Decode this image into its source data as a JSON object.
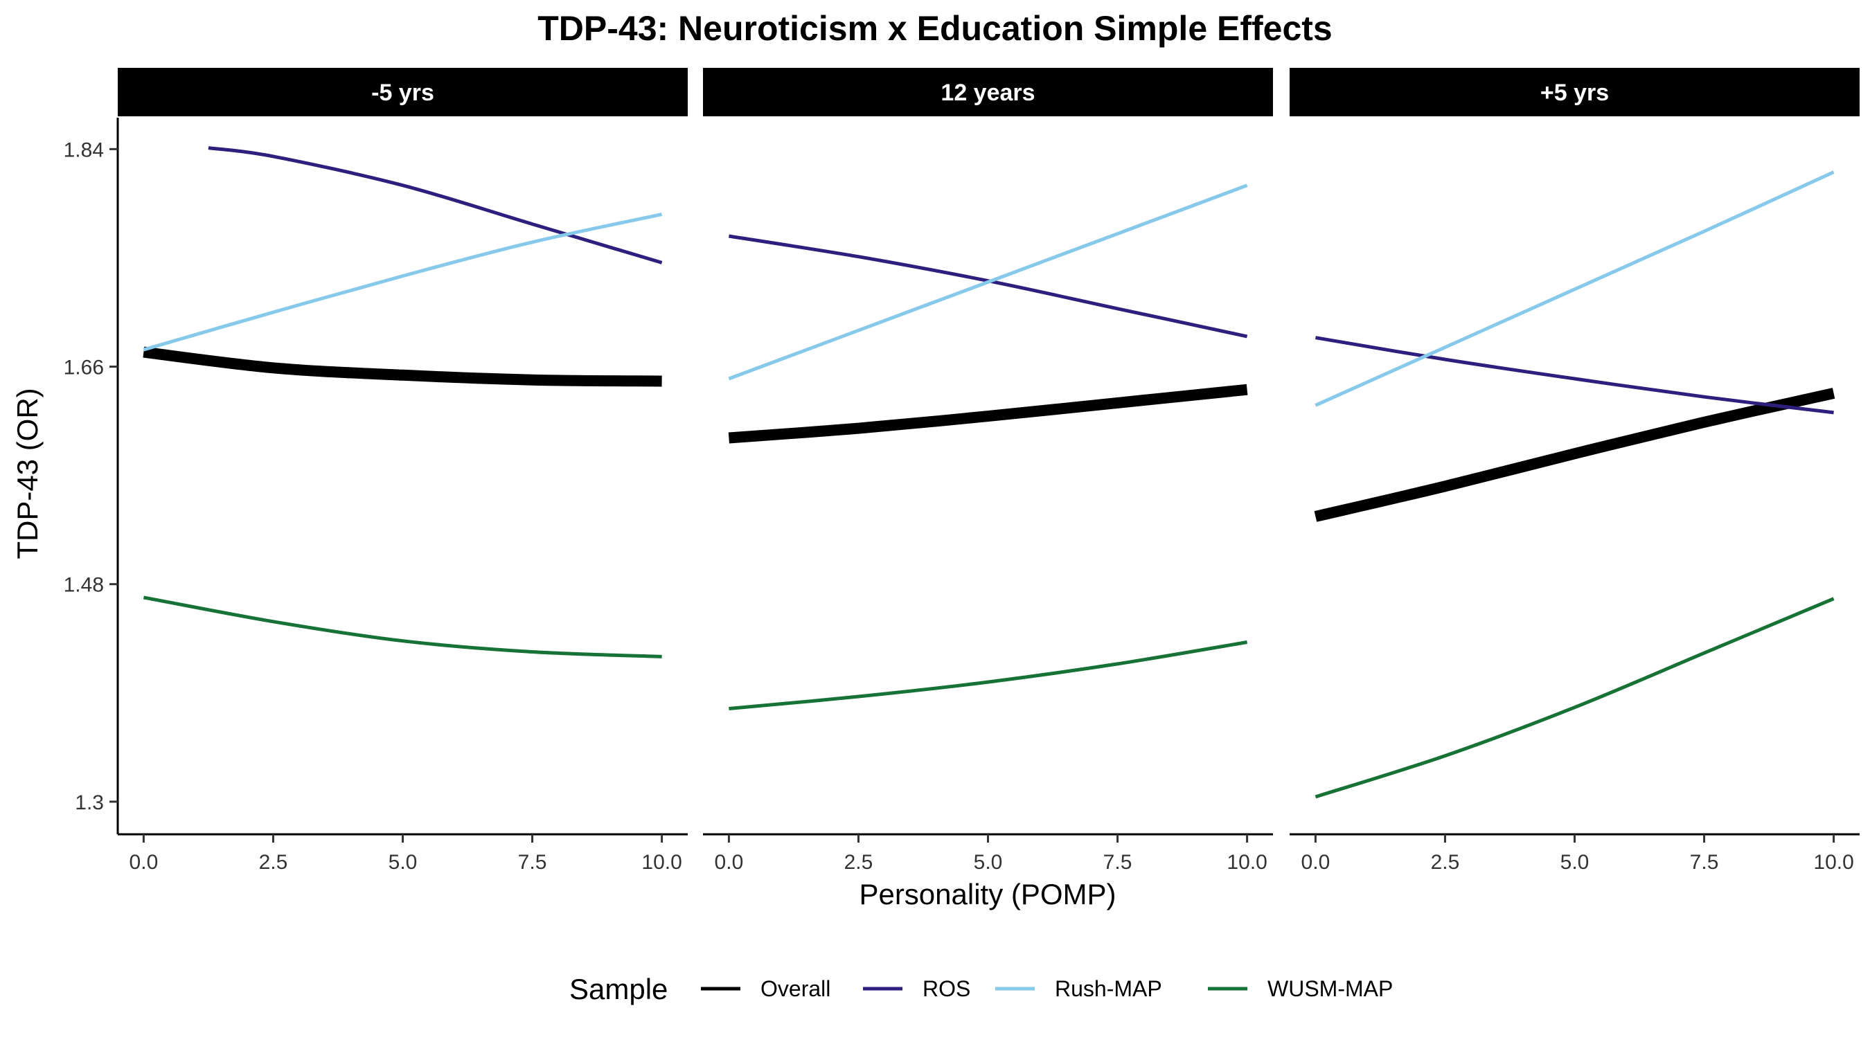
{
  "chart_data": {
    "type": "line",
    "title": "TDP-43: Neuroticism x Education Simple Effects",
    "xlabel": "Personality (POMP)",
    "ylabel": "TDP-43 (OR)",
    "xlim": [
      -0.5,
      10.5
    ],
    "ylim": [
      1.273,
      1.866
    ],
    "x_ticks": [
      0,
      2.5,
      5,
      7.5,
      10
    ],
    "x_tick_labels": [
      "0.0",
      "2.5",
      "5.0",
      "7.5",
      "10.0"
    ],
    "y_ticks": [
      1.3,
      1.48,
      1.66,
      1.84
    ],
    "y_tick_labels": [
      "1.3",
      "1.48",
      "1.66",
      "1.84"
    ],
    "grid": false,
    "legend": {
      "title": "Sample",
      "position": "bottom",
      "entries": [
        "Overall",
        "ROS",
        "Rush-MAP",
        "WUSM-MAP"
      ]
    },
    "series_colors": {
      "Overall": "#000000",
      "ROS": "#2e1f7f",
      "Rush-MAP": "#87c9ea",
      "WUSM-MAP": "#177235"
    },
    "panels": [
      {
        "label": "-5 yrs",
        "series": [
          {
            "name": "Overall",
            "x": [
              0,
              2.5,
              5,
              7.5,
              10
            ],
            "y": [
              1.672,
              1.659,
              1.653,
              1.649,
              1.648
            ]
          },
          {
            "name": "ROS",
            "x": [
              1.25,
              2.5,
              5,
              7.5,
              10
            ],
            "y": [
              1.841,
              1.834,
              1.81,
              1.778,
              1.746
            ]
          },
          {
            "name": "Rush-MAP",
            "x": [
              0,
              2.5,
              5,
              7.5,
              10
            ],
            "y": [
              1.674,
              1.705,
              1.735,
              1.763,
              1.786
            ]
          },
          {
            "name": "WUSM-MAP",
            "x": [
              0,
              2.5,
              5,
              7.5,
              10
            ],
            "y": [
              1.469,
              1.449,
              1.433,
              1.424,
              1.42
            ]
          }
        ]
      },
      {
        "label": "12 years",
        "series": [
          {
            "name": "Overall",
            "x": [
              0,
              2.5,
              5,
              7.5,
              10
            ],
            "y": [
              1.601,
              1.609,
              1.619,
              1.63,
              1.641
            ]
          },
          {
            "name": "ROS",
            "x": [
              0,
              2.5,
              5,
              7.5,
              10
            ],
            "y": [
              1.768,
              1.751,
              1.731,
              1.708,
              1.685
            ]
          },
          {
            "name": "Rush-MAP",
            "x": [
              0,
              2.5,
              5,
              7.5,
              10
            ],
            "y": [
              1.65,
              1.69,
              1.73,
              1.77,
              1.81
            ]
          },
          {
            "name": "WUSM-MAP",
            "x": [
              0,
              2.5,
              5,
              7.5,
              10
            ],
            "y": [
              1.377,
              1.387,
              1.399,
              1.414,
              1.432
            ]
          }
        ]
      },
      {
        "label": "+5 yrs",
        "series": [
          {
            "name": "Overall",
            "x": [
              0,
              2.5,
              5,
              7.5,
              10
            ],
            "y": [
              1.536,
              1.561,
              1.588,
              1.614,
              1.638
            ]
          },
          {
            "name": "ROS",
            "x": [
              0,
              2.5,
              5,
              7.5,
              10
            ],
            "y": [
              1.684,
              1.666,
              1.65,
              1.635,
              1.622
            ]
          },
          {
            "name": "Rush-MAP",
            "x": [
              0,
              2.5,
              5,
              7.5,
              10
            ],
            "y": [
              1.628,
              1.676,
              1.724,
              1.772,
              1.821
            ]
          },
          {
            "name": "WUSM-MAP",
            "x": [
              0,
              2.5,
              5,
              7.5,
              10
            ],
            "y": [
              1.304,
              1.338,
              1.378,
              1.423,
              1.468
            ]
          }
        ]
      }
    ]
  }
}
